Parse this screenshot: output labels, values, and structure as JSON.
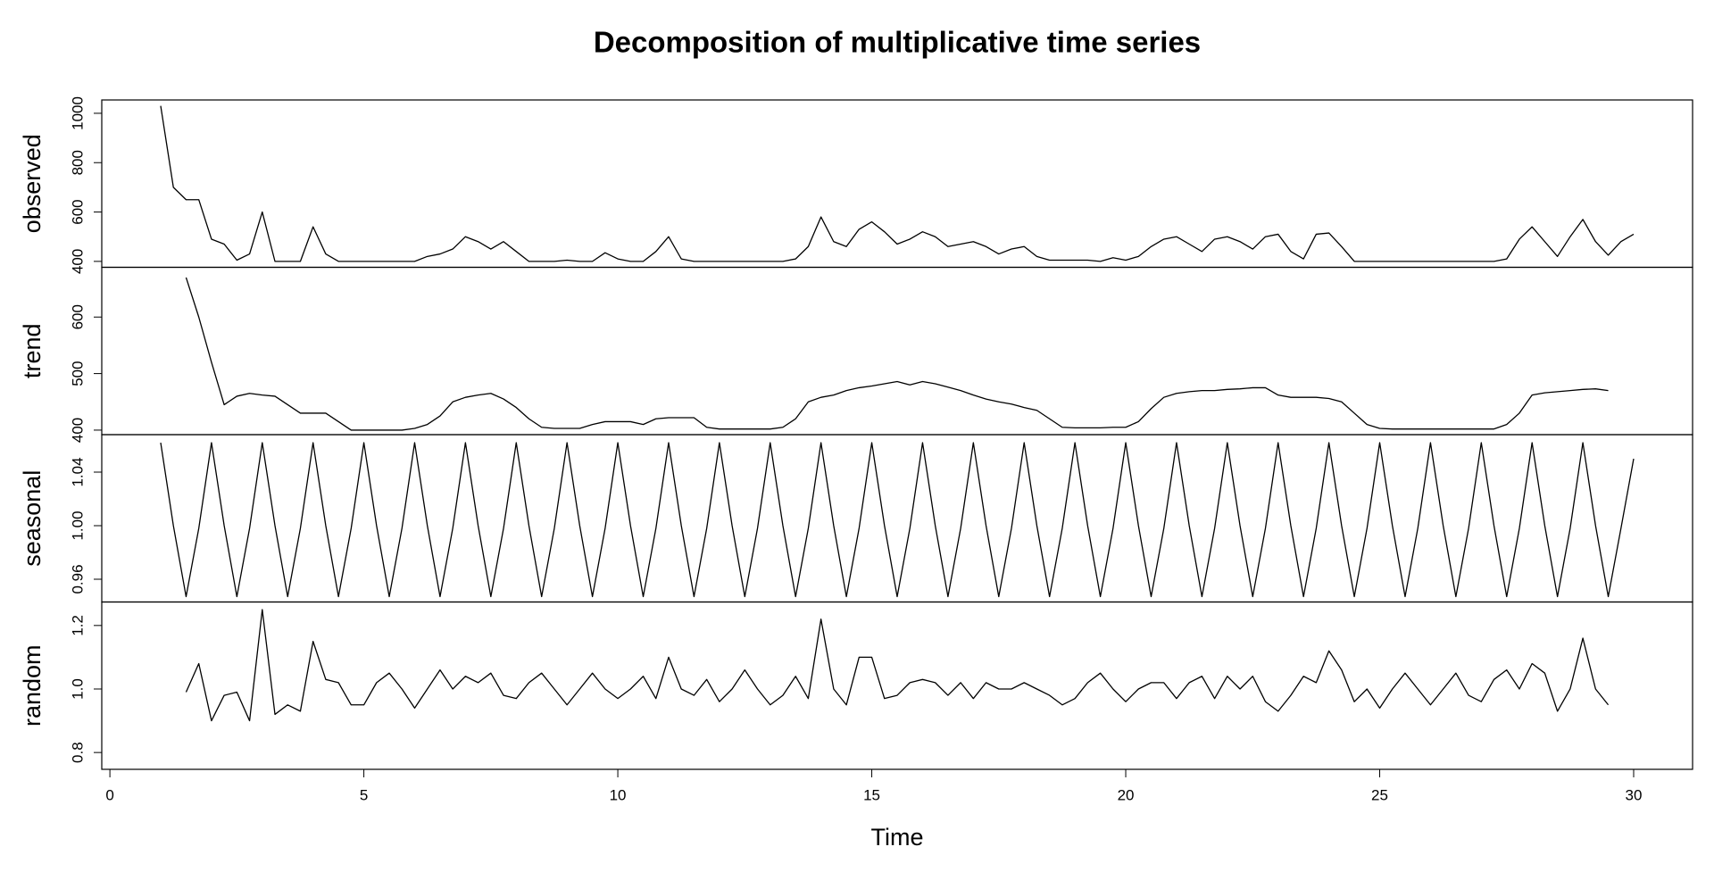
{
  "chart_data": {
    "type": "line",
    "title": "Decomposition of multiplicative time series",
    "xlabel": "Time",
    "xlim": [
      -0.16,
      31.16
    ],
    "xticks": [
      0,
      5,
      10,
      15,
      20,
      25,
      30
    ],
    "x": [
      1,
      1.25,
      1.5,
      1.75,
      2,
      2.25,
      2.5,
      2.75,
      3,
      3.25,
      3.5,
      3.75,
      4,
      4.25,
      4.5,
      4.75,
      5,
      5.25,
      5.5,
      5.75,
      6,
      6.25,
      6.5,
      6.75,
      7,
      7.25,
      7.5,
      7.75,
      8,
      8.25,
      8.5,
      8.75,
      9,
      9.25,
      9.5,
      9.75,
      10,
      10.25,
      10.5,
      10.75,
      11,
      11.25,
      11.5,
      11.75,
      12,
      12.25,
      12.5,
      12.75,
      13,
      13.25,
      13.5,
      13.75,
      14,
      14.25,
      14.5,
      14.75,
      15,
      15.25,
      15.5,
      15.75,
      16,
      16.25,
      16.5,
      16.75,
      17,
      17.25,
      17.5,
      17.75,
      18,
      18.25,
      18.5,
      18.75,
      19,
      19.25,
      19.5,
      19.75,
      20,
      20.25,
      20.5,
      20.75,
      21,
      21.25,
      21.5,
      21.75,
      22,
      22.25,
      22.5,
      22.75,
      23,
      23.25,
      23.5,
      23.75,
      24,
      24.25,
      24.5,
      24.75,
      25,
      25.25,
      25.5,
      25.75,
      26,
      26.25,
      26.5,
      26.75,
      27,
      27.25,
      27.5,
      27.75,
      28,
      28.25,
      28.5,
      28.75,
      29,
      29.25,
      29.5,
      29.75,
      30
    ],
    "series": [
      {
        "name": "observed",
        "color": "#000000",
        "ylim": [
          376,
          1054
        ],
        "yticks": [
          400,
          600,
          800,
          1000
        ],
        "values": [
          1030,
          700,
          650,
          650,
          490,
          470,
          405,
          430,
          600,
          400,
          400,
          400,
          540,
          430,
          400,
          400,
          400,
          400,
          400,
          400,
          400,
          420,
          430,
          450,
          500,
          480,
          450,
          480,
          440,
          400,
          400,
          400,
          405,
          400,
          400,
          435,
          410,
          400,
          400,
          440,
          500,
          410,
          400,
          400,
          400,
          400,
          400,
          400,
          400,
          400,
          410,
          460,
          580,
          480,
          460,
          530,
          560,
          520,
          470,
          490,
          520,
          500,
          460,
          470,
          480,
          460,
          430,
          450,
          460,
          420,
          405,
          405,
          405,
          405,
          400,
          415,
          405,
          420,
          460,
          490,
          500,
          470,
          440,
          490,
          500,
          480,
          450,
          500,
          510,
          440,
          410,
          510,
          515,
          460,
          400,
          400,
          400,
          400,
          400,
          400,
          400,
          400,
          400,
          400,
          400,
          400,
          410,
          490,
          540,
          480,
          420,
          500,
          570,
          480,
          425,
          480,
          510
        ]
      },
      {
        "name": "trend",
        "color": "#000000",
        "ylim": [
          392,
          688
        ],
        "yticks": [
          400,
          500,
          600
        ],
        "values": [
          null,
          null,
          670,
          600,
          520,
          445,
          460,
          465,
          462,
          460,
          445,
          430,
          430,
          430,
          415,
          400,
          400,
          400,
          400,
          400,
          403,
          410,
          425,
          450,
          458,
          462,
          465,
          455,
          440,
          420,
          405,
          403,
          403,
          403,
          410,
          415,
          415,
          415,
          410,
          420,
          422,
          422,
          422,
          405,
          402,
          402,
          402,
          402,
          402,
          405,
          420,
          450,
          458,
          462,
          470,
          475,
          478,
          482,
          486,
          480,
          486,
          482,
          476,
          470,
          462,
          455,
          450,
          446,
          440,
          435,
          420,
          405,
          404,
          404,
          404,
          405,
          405,
          415,
          438,
          458,
          465,
          468,
          470,
          470,
          472,
          473,
          475,
          475,
          462,
          458,
          458,
          458,
          456,
          450,
          430,
          410,
          403,
          402,
          402,
          402,
          402,
          402,
          402,
          402,
          402,
          402,
          410,
          430,
          462,
          466,
          468,
          470,
          472,
          473,
          470,
          null,
          null
        ]
      },
      {
        "name": "seasonal",
        "color": "#000000",
        "ylim": [
          0.943,
          1.068
        ],
        "yticks": [
          0.96,
          {
            "value": 1,
            "label": "1.00"
          },
          1.04
        ],
        "values": [
          1.062,
          1.0,
          0.947,
          0.998,
          1.062,
          1.0,
          0.947,
          0.998,
          1.062,
          1.0,
          0.947,
          0.998,
          1.062,
          1.0,
          0.947,
          0.998,
          1.062,
          1.0,
          0.947,
          0.998,
          1.062,
          1.0,
          0.947,
          0.998,
          1.062,
          1.0,
          0.947,
          0.998,
          1.062,
          1.0,
          0.947,
          0.998,
          1.062,
          1.0,
          0.947,
          0.998,
          1.062,
          1.0,
          0.947,
          0.998,
          1.062,
          1.0,
          0.947,
          0.998,
          1.062,
          1.0,
          0.947,
          0.998,
          1.062,
          1.0,
          0.947,
          0.998,
          1.062,
          1.0,
          0.947,
          0.998,
          1.062,
          1.0,
          0.947,
          0.998,
          1.062,
          1.0,
          0.947,
          0.998,
          1.062,
          1.0,
          0.947,
          0.998,
          1.062,
          1.0,
          0.947,
          0.998,
          1.062,
          1.0,
          0.947,
          0.998,
          1.062,
          1.0,
          0.947,
          0.998,
          1.062,
          1.0,
          0.947,
          0.998,
          1.062,
          1.0,
          0.947,
          0.998,
          1.062,
          1.0,
          0.947,
          0.998,
          1.062,
          1.0,
          0.947,
          0.998,
          1.062,
          1.0,
          0.947,
          0.998,
          1.062,
          1.0,
          0.947,
          0.998,
          1.062,
          1.0,
          0.947,
          0.998,
          1.062,
          1.0,
          0.947,
          0.998,
          1.062,
          1.0,
          0.947,
          0.998,
          1.05
        ]
      },
      {
        "name": "random",
        "color": "#000000",
        "ylim": [
          0.747,
          1.274
        ],
        "yticks": [
          0.8,
          {
            "value": 1,
            "label": "1.0"
          },
          1.2
        ],
        "values": [
          null,
          null,
          0.99,
          1.08,
          0.9,
          0.98,
          0.99,
          0.9,
          1.25,
          0.92,
          0.95,
          0.93,
          1.15,
          1.03,
          1.02,
          0.95,
          0.95,
          1.02,
          1.05,
          1.0,
          0.94,
          1.0,
          1.06,
          1.0,
          1.04,
          1.02,
          1.05,
          0.98,
          0.97,
          1.02,
          1.05,
          1.0,
          0.95,
          1.0,
          1.05,
          1.0,
          0.97,
          1.0,
          1.04,
          0.97,
          1.1,
          1.0,
          0.98,
          1.03,
          0.96,
          1.0,
          1.06,
          1.0,
          0.95,
          0.98,
          1.04,
          0.97,
          1.22,
          1.0,
          0.95,
          1.1,
          1.1,
          0.97,
          0.98,
          1.02,
          1.03,
          1.02,
          0.98,
          1.02,
          0.97,
          1.02,
          1.0,
          1.0,
          1.02,
          1.0,
          0.98,
          0.95,
          0.97,
          1.02,
          1.05,
          1.0,
          0.96,
          1.0,
          1.02,
          1.02,
          0.97,
          1.02,
          1.04,
          0.97,
          1.04,
          1.0,
          1.04,
          0.96,
          0.93,
          0.98,
          1.04,
          1.02,
          1.12,
          1.06,
          0.96,
          1.0,
          0.94,
          1.0,
          1.05,
          1.0,
          0.95,
          1.0,
          1.05,
          0.98,
          0.96,
          1.03,
          1.06,
          1.0,
          1.08,
          1.05,
          0.93,
          1.0,
          1.16,
          1.0,
          0.95,
          null,
          null
        ]
      }
    ]
  }
}
